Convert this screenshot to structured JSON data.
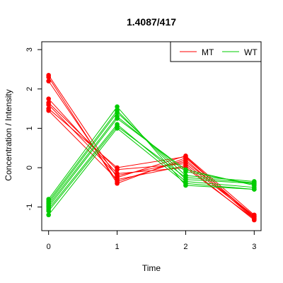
{
  "chart_data": {
    "type": "line",
    "title": "1.4087/417",
    "xlabel": "Time",
    "ylabel": "Concentration / Intensity",
    "x": [
      0,
      1,
      2,
      3
    ],
    "x_ticks": [
      "0",
      "1",
      "2",
      "3"
    ],
    "y_ticks": [
      "-1",
      "0",
      "1",
      "2",
      "3"
    ],
    "xlim": [
      -0.1,
      3.1
    ],
    "ylim": [
      -1.6,
      3.2
    ],
    "grid": false,
    "legend_position": "top-right",
    "legend": [
      {
        "label": "MT",
        "color": "#ff0000"
      },
      {
        "label": "WT",
        "color": "#00cc00"
      }
    ],
    "series": [
      {
        "group": "MT",
        "color": "#ff0000",
        "values": [
          2.35,
          -0.25,
          0.3,
          -1.2
        ]
      },
      {
        "group": "MT",
        "color": "#ff0000",
        "values": [
          2.3,
          -0.4,
          0.25,
          -1.25
        ]
      },
      {
        "group": "MT",
        "color": "#ff0000",
        "values": [
          2.2,
          -0.35,
          0.2,
          -1.3
        ]
      },
      {
        "group": "MT",
        "color": "#ff0000",
        "values": [
          1.75,
          -0.15,
          0.0,
          -1.3
        ]
      },
      {
        "group": "MT",
        "color": "#ff0000",
        "values": [
          1.65,
          -0.05,
          0.1,
          -1.25
        ]
      },
      {
        "group": "MT",
        "color": "#ff0000",
        "values": [
          1.6,
          -0.2,
          0.15,
          -1.22
        ]
      },
      {
        "group": "MT",
        "color": "#ff0000",
        "values": [
          1.5,
          0.0,
          0.28,
          -1.28
        ]
      },
      {
        "group": "MT",
        "color": "#ff0000",
        "values": [
          1.45,
          -0.3,
          0.05,
          -1.33
        ]
      },
      {
        "group": "WT",
        "color": "#00cc00",
        "values": [
          -0.8,
          1.55,
          -0.45,
          -0.55
        ]
      },
      {
        "group": "WT",
        "color": "#00cc00",
        "values": [
          -0.85,
          1.45,
          -0.3,
          -0.4
        ]
      },
      {
        "group": "WT",
        "color": "#00cc00",
        "values": [
          -0.9,
          1.4,
          -0.2,
          -0.35
        ]
      },
      {
        "group": "WT",
        "color": "#00cc00",
        "values": [
          -0.95,
          1.3,
          -0.1,
          -0.42
        ]
      },
      {
        "group": "WT",
        "color": "#00cc00",
        "values": [
          -1.0,
          1.25,
          -0.05,
          -0.45
        ]
      },
      {
        "group": "WT",
        "color": "#00cc00",
        "values": [
          -1.05,
          1.1,
          -0.35,
          -0.5
        ]
      },
      {
        "group": "WT",
        "color": "#00cc00",
        "values": [
          -1.1,
          1.05,
          -0.25,
          -0.38
        ]
      },
      {
        "group": "WT",
        "color": "#00cc00",
        "values": [
          -1.2,
          1.0,
          -0.4,
          -0.55
        ]
      }
    ]
  }
}
